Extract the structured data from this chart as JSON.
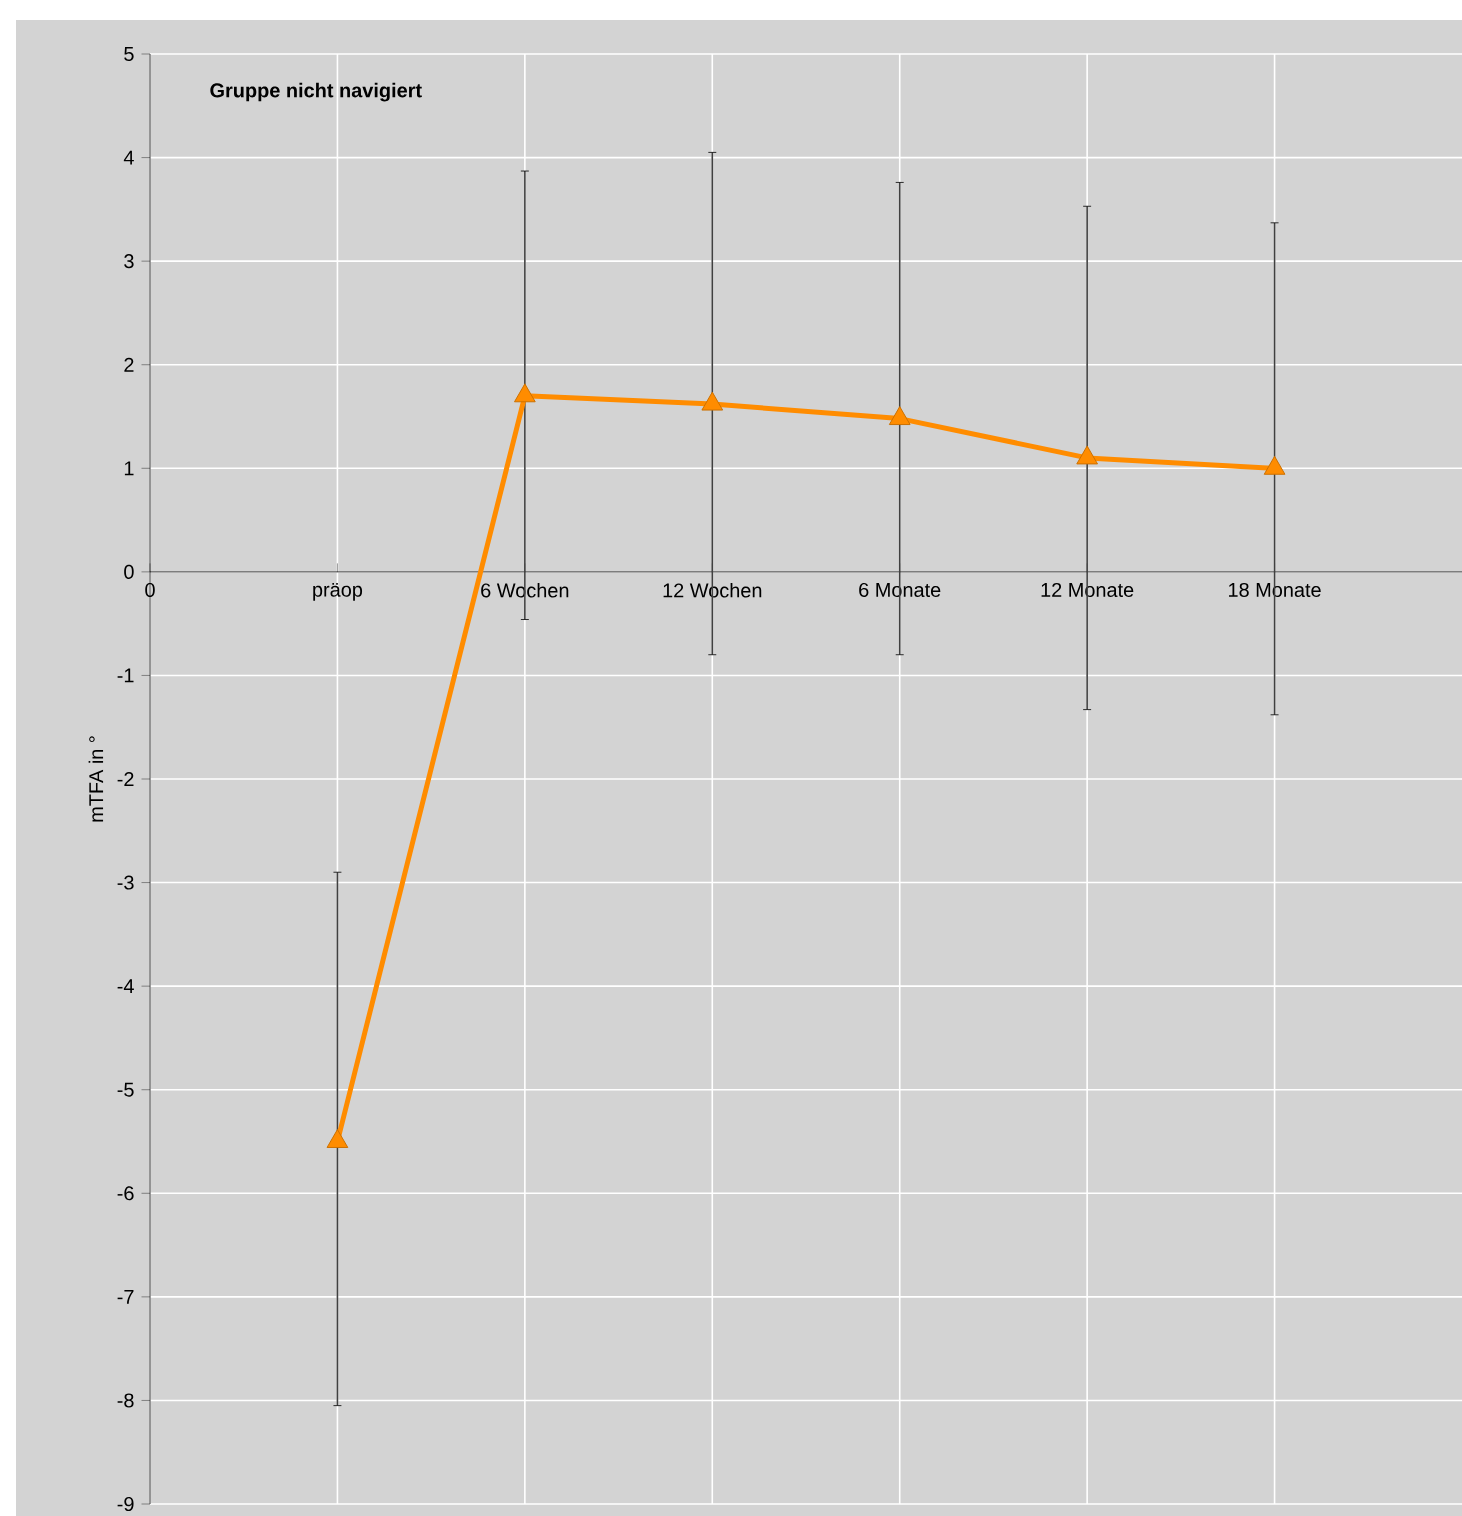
{
  "chart_data": {
    "type": "line",
    "title": "Gruppe nicht navigiert",
    "ylabel": "mTFA in °",
    "categories": [
      "0",
      "präop",
      "6 Wochen",
      "12 Wochen",
      "6 Monate",
      "12 Monate",
      "18 Monate"
    ],
    "series": [
      {
        "color": "#ff8c00",
        "values": [
          null,
          -5.5,
          1.7,
          1.62,
          1.48,
          1.1,
          1.0
        ],
        "errors": [
          null,
          [
            -8.05,
            -2.9
          ],
          [
            -0.46,
            3.87
          ],
          [
            -0.8,
            4.05
          ],
          [
            -0.8,
            3.76
          ],
          [
            -1.33,
            3.53
          ],
          [
            -1.38,
            3.37
          ]
        ]
      }
    ],
    "ylim": [
      -9,
      5
    ],
    "yticks": [
      -9,
      -8,
      -7,
      -6,
      -5,
      -4,
      -3,
      -2,
      -1,
      0,
      1,
      2,
      3,
      4,
      5
    ],
    "grid": true,
    "marker": "triangle",
    "line_style": "solid"
  }
}
